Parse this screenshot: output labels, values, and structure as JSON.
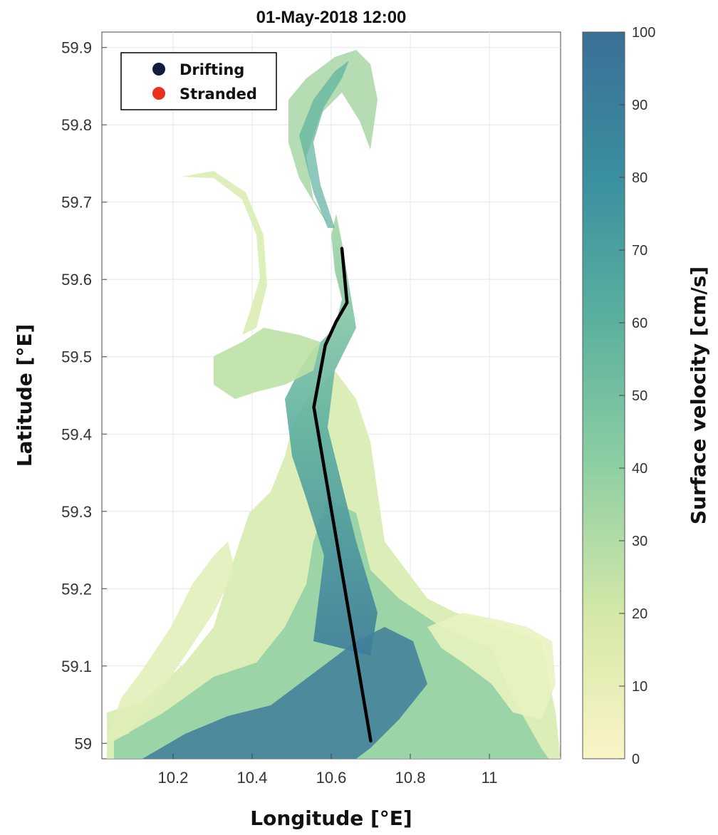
{
  "chart_data": {
    "type": "heatmap",
    "title": "01-May-2018 12:00",
    "xlabel": "Longitude [°E]",
    "ylabel": "Latitude [°E]",
    "xlim": [
      10.02,
      11.18
    ],
    "ylim": [
      58.98,
      59.92
    ],
    "x_ticks": [
      "10.2",
      "10.4",
      "10.6",
      "10.8",
      "11"
    ],
    "y_ticks": [
      "59",
      "59.1",
      "59.2",
      "59.3",
      "59.4",
      "59.5",
      "59.6",
      "59.7",
      "59.8",
      "59.9"
    ],
    "grid": true,
    "colorbar": {
      "label": "Surface velocity [cm/s]",
      "range": [
        0,
        100
      ],
      "ticks": [
        "0",
        "10",
        "20",
        "30",
        "40",
        "50",
        "60",
        "70",
        "80",
        "90",
        "100"
      ],
      "colors": [
        "#fbf4c6",
        "#d4e8a8",
        "#8fcfa3",
        "#5bb19e",
        "#3a8fa0",
        "#3b6f96"
      ]
    },
    "legend": {
      "placement": "top-left",
      "entries": [
        {
          "label": "Drifting",
          "color": "#151a3f"
        },
        {
          "label": "Stranded",
          "color": "#e8321e"
        }
      ]
    },
    "track": {
      "color": "#000000",
      "points": [
        [
          10.627,
          59.64
        ],
        [
          10.64,
          59.57
        ],
        [
          10.612,
          59.545
        ],
        [
          10.585,
          59.515
        ],
        [
          10.556,
          59.435
        ],
        [
          10.7,
          59.003
        ]
      ]
    }
  }
}
